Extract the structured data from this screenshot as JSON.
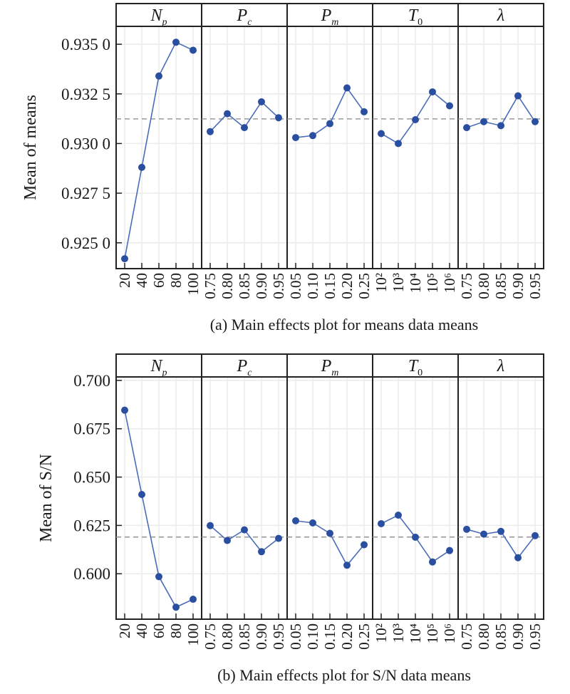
{
  "chart_data": [
    {
      "type": "line",
      "title": "(a) Main effects plot for means data means",
      "ylabel": "Mean of means",
      "xlabel": "",
      "ylim": [
        0.9237,
        0.9359
      ],
      "yticks": [
        0.925,
        0.9275,
        0.93,
        0.9325,
        0.935
      ],
      "ytick_labels": [
        "0.925 0",
        "0.927 5",
        "0.930 0",
        "0.932 5",
        "0.935 0"
      ],
      "grid": true,
      "reference_line": {
        "style": "dashed",
        "value": 0.93124
      },
      "marker_color": "#2b4fa0",
      "line_color": "#4a6db8",
      "panels": [
        {
          "factor": "N",
          "factor_sub": "p",
          "categories": [
            "20",
            "40",
            "60",
            "80",
            "100"
          ],
          "values": [
            0.9242,
            0.9288,
            0.9334,
            0.9351,
            0.9347
          ]
        },
        {
          "factor": "P",
          "factor_sub": "c",
          "categories": [
            "0.75",
            "0.80",
            "0.85",
            "0.90",
            "0.95"
          ],
          "values": [
            0.9306,
            0.9315,
            0.9308,
            0.9321,
            0.9313
          ]
        },
        {
          "factor": "P",
          "factor_sub": "m",
          "categories": [
            "0.05",
            "0.10",
            "0.15",
            "0.20",
            "0.25"
          ],
          "values": [
            0.9303,
            0.9304,
            0.931,
            0.9328,
            0.9316
          ]
        },
        {
          "factor": "T",
          "factor_sub": "0",
          "categories": [
            "10²",
            "10³",
            "10⁴",
            "10⁵",
            "10⁶"
          ],
          "values": [
            0.9305,
            0.93,
            0.9312,
            0.9326,
            0.9319
          ]
        },
        {
          "factor": "λ",
          "factor_sub": "",
          "categories": [
            "0.75",
            "0.80",
            "0.85",
            "0.90",
            "0.95"
          ],
          "values": [
            0.9308,
            0.9311,
            0.9309,
            0.9324,
            0.9311
          ]
        }
      ]
    },
    {
      "type": "line",
      "title": "(b) Main effects plot for S/N data means",
      "ylabel": "Mean of S/N",
      "xlabel": "",
      "ylim": [
        0.5765,
        0.7018
      ],
      "yticks": [
        0.6,
        0.625,
        0.65,
        0.675,
        0.7
      ],
      "ytick_labels": [
        "0.600",
        "0.625",
        "0.650",
        "0.675",
        "0.700"
      ],
      "grid": true,
      "reference_line": {
        "style": "dashed",
        "value": 0.619
      },
      "marker_color": "#2b4fa0",
      "line_color": "#4a6db8",
      "panels": [
        {
          "factor": "N",
          "factor_sub": "p",
          "categories": [
            "20",
            "40",
            "60",
            "80",
            "100"
          ],
          "values": [
            0.6846,
            0.641,
            0.5985,
            0.5827,
            0.5868
          ]
        },
        {
          "factor": "P",
          "factor_sub": "c",
          "categories": [
            "0.75",
            "0.80",
            "0.85",
            "0.90",
            "0.95"
          ],
          "values": [
            0.6249,
            0.6172,
            0.6227,
            0.6114,
            0.6183
          ]
        },
        {
          "factor": "P",
          "factor_sub": "m",
          "categories": [
            "0.05",
            "0.10",
            "0.15",
            "0.20",
            "0.25"
          ],
          "values": [
            0.6274,
            0.6263,
            0.6209,
            0.6044,
            0.615
          ]
        },
        {
          "factor": "T",
          "factor_sub": "0",
          "categories": [
            "10²",
            "10³",
            "10⁴",
            "10⁵",
            "10⁶"
          ],
          "values": [
            0.6259,
            0.6303,
            0.6189,
            0.6061,
            0.612
          ]
        },
        {
          "factor": "λ",
          "factor_sub": "",
          "categories": [
            "0.75",
            "0.80",
            "0.85",
            "0.90",
            "0.95"
          ],
          "values": [
            0.623,
            0.6205,
            0.6219,
            0.6083,
            0.6197
          ]
        }
      ]
    }
  ]
}
